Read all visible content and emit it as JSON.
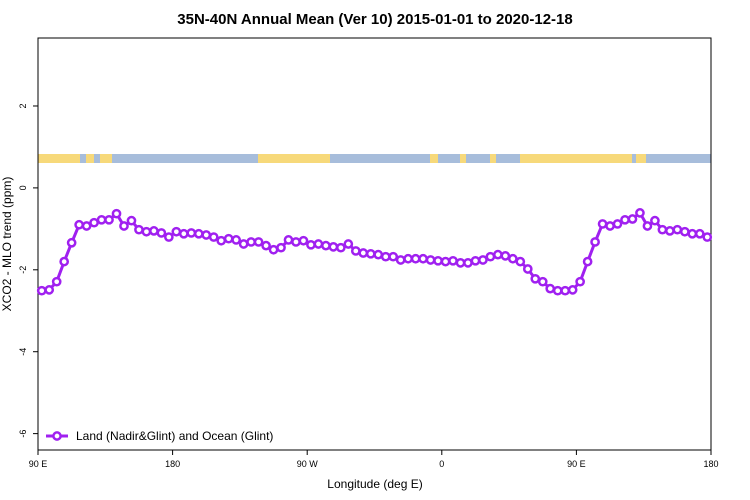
{
  "chart_data": {
    "type": "line",
    "title": "35N-40N Annual Mean (Ver 10)   2015-01-01 to 2020-12-18",
    "x_label": "Longitude (deg E)",
    "y_label": "XCO2 - MLO trend (ppm)",
    "x": [
      92.5,
      97.5,
      102.5,
      107.5,
      112.5,
      117.5,
      122.5,
      127.5,
      132.5,
      137.5,
      142.5,
      147.5,
      152.5,
      157.5,
      162.5,
      167.5,
      172.5,
      177.5,
      182.5,
      187.5,
      192.5,
      197.5,
      202.5,
      207.5,
      212.5,
      217.5,
      222.5,
      227.5,
      232.5,
      237.5,
      242.5,
      247.5,
      252.5,
      257.5,
      262.5,
      267.5,
      272.5,
      277.5,
      282.5,
      287.5,
      292.5,
      297.5,
      302.5,
      307.5,
      312.5,
      317.5,
      322.5,
      327.5,
      332.5,
      337.5,
      342.5,
      347.5,
      352.5,
      357.5,
      362.5,
      367.5,
      372.5,
      377.5,
      382.5,
      387.5,
      392.5,
      397.5,
      402.5,
      407.5,
      412.5,
      417.5,
      422.5,
      427.5,
      432.5,
      437.5,
      442.5,
      447.5,
      452.5,
      457.5,
      462.5,
      467.5,
      472.5,
      477.5,
      482.5,
      487.5,
      492.5,
      497.5,
      502.5,
      507.5,
      512.5,
      517.5,
      522.5,
      527.5,
      532.5,
      537.5
    ],
    "series": [
      {
        "name": "Land (Nadir&Glint) and Ocean (Glint)",
        "color": "#a020f0",
        "values": [
          -2.51,
          -2.49,
          -2.29,
          -1.8,
          -1.34,
          -0.9,
          -0.93,
          -0.85,
          -0.78,
          -0.78,
          -0.63,
          -0.93,
          -0.8,
          -1.02,
          -1.07,
          -1.05,
          -1.1,
          -1.2,
          -1.07,
          -1.12,
          -1.1,
          -1.12,
          -1.15,
          -1.2,
          -1.29,
          -1.24,
          -1.27,
          -1.37,
          -1.32,
          -1.32,
          -1.41,
          -1.51,
          -1.46,
          -1.27,
          -1.32,
          -1.29,
          -1.39,
          -1.37,
          -1.41,
          -1.44,
          -1.46,
          -1.37,
          -1.54,
          -1.59,
          -1.61,
          -1.63,
          -1.68,
          -1.68,
          -1.76,
          -1.73,
          -1.73,
          -1.73,
          -1.76,
          -1.78,
          -1.8,
          -1.78,
          -1.83,
          -1.83,
          -1.78,
          -1.76,
          -1.68,
          -1.63,
          -1.66,
          -1.73,
          -1.8,
          -1.98,
          -2.22,
          -2.29,
          -2.46,
          -2.51,
          -2.51,
          -2.49,
          -2.29,
          -1.8,
          -1.32,
          -0.88,
          -0.93,
          -0.88,
          -0.78,
          -0.76,
          -0.61,
          -0.93,
          -0.8,
          -1.02,
          -1.05,
          -1.02,
          -1.07,
          -1.12,
          -1.12,
          -1.2
        ]
      }
    ],
    "xlim": [
      90,
      540
    ],
    "xticks": [
      {
        "value": 90,
        "label": "90 E"
      },
      180,
      {
        "value": 270,
        "label": "90 W"
      },
      {
        "value": 360,
        "label": "0"
      },
      {
        "value": 450,
        "label": "90 E"
      },
      {
        "value": 540,
        "label": "180"
      }
    ],
    "ylim": [
      -6.4,
      3.66
    ],
    "yticks": [
      -6,
      -4,
      -2,
      0,
      2
    ],
    "legend": "bottomleft"
  }
}
